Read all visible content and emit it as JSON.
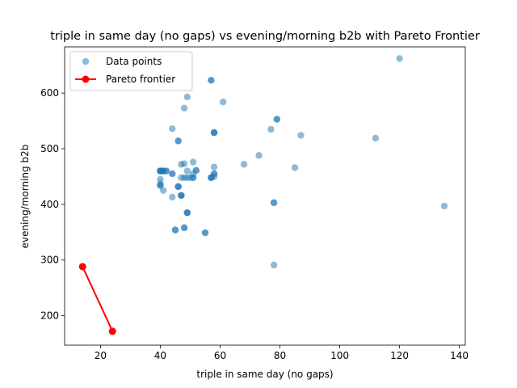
{
  "chart_data": {
    "type": "scatter",
    "title": "triple in same day (no gaps) vs evening/morning b2b with Pareto Frontier",
    "xlabel": "triple in same day (no gaps)",
    "ylabel": "evening/morning b2b",
    "xlim": [
      8,
      142
    ],
    "ylim": [
      147,
      683
    ],
    "xticks": [
      20,
      40,
      60,
      80,
      100,
      120,
      140
    ],
    "yticks": [
      200,
      300,
      400,
      500,
      600
    ],
    "legend": {
      "placement": "top-left",
      "entries": [
        "Data points",
        "Pareto frontier"
      ]
    },
    "series": [
      {
        "name": "Data points",
        "kind": "scatter",
        "color": "#1f77b4",
        "points": [
          [
            40,
            460
          ],
          [
            40,
            460
          ],
          [
            40,
            460
          ],
          [
            40,
            460
          ],
          [
            41,
            460
          ],
          [
            41,
            460
          ],
          [
            41,
            460
          ],
          [
            42,
            460
          ],
          [
            42,
            460
          ],
          [
            40,
            437
          ],
          [
            40,
            434
          ],
          [
            40,
            434
          ],
          [
            40,
            445
          ],
          [
            41,
            425
          ],
          [
            44,
            413
          ],
          [
            44,
            455
          ],
          [
            44,
            455
          ],
          [
            46,
            432
          ],
          [
            46,
            432
          ],
          [
            46,
            432
          ],
          [
            46,
            514
          ],
          [
            46,
            514
          ],
          [
            47,
            416
          ],
          [
            47,
            416
          ],
          [
            47,
            416
          ],
          [
            47,
            472
          ],
          [
            48,
            473
          ],
          [
            47,
            448
          ],
          [
            48,
            448
          ],
          [
            49,
            448
          ],
          [
            49,
            460
          ],
          [
            49,
            385
          ],
          [
            49,
            385
          ],
          [
            49,
            385
          ],
          [
            48,
            358
          ],
          [
            48,
            358
          ],
          [
            45,
            354
          ],
          [
            45,
            354
          ],
          [
            44,
            536
          ],
          [
            48,
            573
          ],
          [
            49,
            593
          ],
          [
            50,
            448
          ],
          [
            51,
            448
          ],
          [
            51,
            448
          ],
          [
            51,
            476
          ],
          [
            52,
            461
          ],
          [
            52,
            461
          ],
          [
            51,
            455
          ],
          [
            55,
            349
          ],
          [
            55,
            349
          ],
          [
            57,
            623
          ],
          [
            57,
            623
          ],
          [
            57,
            448
          ],
          [
            57,
            448
          ],
          [
            57,
            448
          ],
          [
            58,
            450
          ],
          [
            58,
            455
          ],
          [
            58,
            455
          ],
          [
            58,
            529
          ],
          [
            58,
            529
          ],
          [
            58,
            529
          ],
          [
            58,
            467
          ],
          [
            61,
            584
          ],
          [
            68,
            472
          ],
          [
            73,
            488
          ],
          [
            77,
            535
          ],
          [
            78,
            403
          ],
          [
            78,
            403
          ],
          [
            78,
            291
          ],
          [
            79,
            553
          ],
          [
            79,
            553
          ],
          [
            85,
            466
          ],
          [
            87,
            524
          ],
          [
            112,
            519
          ],
          [
            120,
            662
          ],
          [
            135,
            397
          ]
        ]
      },
      {
        "name": "Pareto frontier",
        "kind": "line",
        "color": "#ff0000",
        "points": [
          [
            14,
            288
          ],
          [
            24,
            172
          ]
        ]
      }
    ]
  }
}
